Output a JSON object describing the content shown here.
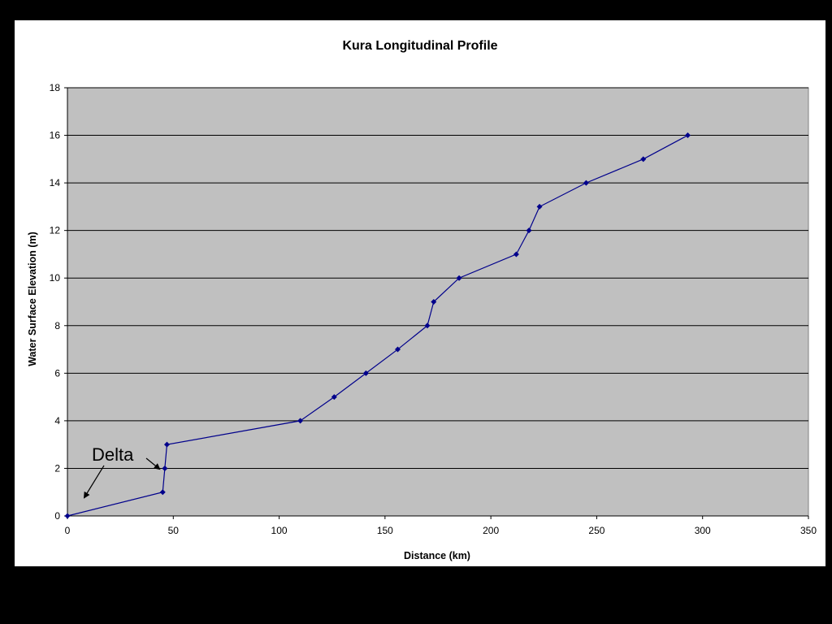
{
  "chart_data": {
    "type": "line",
    "title": "Kura Longitudinal Profile",
    "xlabel": "Distance (km)",
    "ylabel": "Water Surface Elevation (m)",
    "xlim": [
      0,
      350
    ],
    "ylim": [
      0,
      18
    ],
    "xticks": [
      0,
      50,
      100,
      150,
      200,
      250,
      300,
      350
    ],
    "yticks": [
      0,
      2,
      4,
      6,
      8,
      10,
      12,
      14,
      16,
      18
    ],
    "grid": "horizontal",
    "legend": "none",
    "series": [
      {
        "x": [
          0,
          45,
          46,
          47,
          110,
          126,
          141,
          156,
          170,
          173,
          185,
          212,
          218,
          223,
          245,
          272,
          293
        ],
        "y": [
          0,
          1,
          2,
          3,
          4,
          5,
          6,
          7,
          8,
          9,
          10,
          11,
          12,
          13,
          14,
          15,
          16
        ]
      }
    ],
    "annotations": [
      {
        "text": "Delta"
      }
    ]
  },
  "colors": {
    "plot_background": "#c0c0c0",
    "series_line": "#00008b",
    "gridline": "#000000",
    "frame_background": "#000000",
    "panel_background": "#ffffff"
  }
}
